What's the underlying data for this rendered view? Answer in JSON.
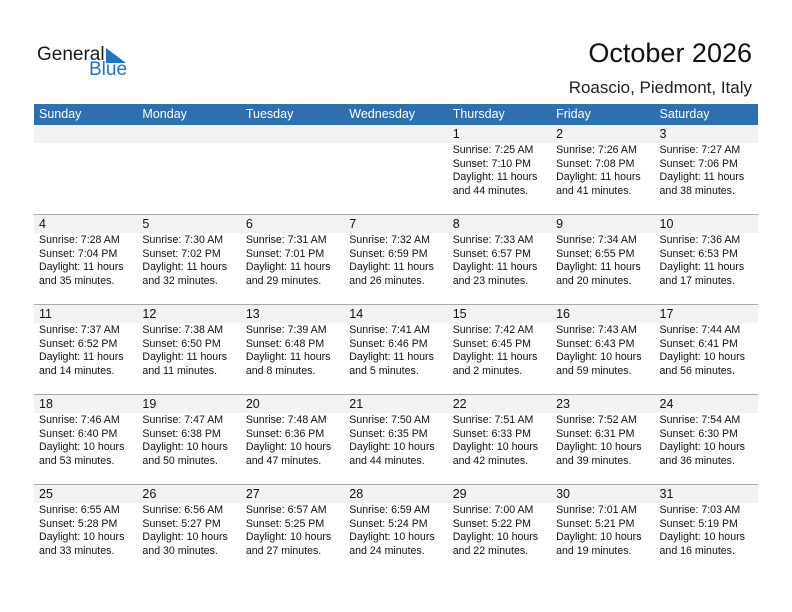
{
  "logo": {
    "line1": "General",
    "line2": "Blue"
  },
  "title": "October 2026",
  "location": "Roascio, Piedmont, Italy",
  "colors": {
    "header": "#2e6fb0",
    "date_band": "#f2f2f2",
    "logo_blue": "#1f75c2"
  },
  "days": [
    "Sunday",
    "Monday",
    "Tuesday",
    "Wednesday",
    "Thursday",
    "Friday",
    "Saturday"
  ],
  "weeks": [
    [
      null,
      null,
      null,
      null,
      {
        "d": "1",
        "sr": "Sunrise: 7:25 AM",
        "ss": "Sunset: 7:10 PM",
        "dl": "Daylight: 11 hours",
        "dm": "and 44 minutes."
      },
      {
        "d": "2",
        "sr": "Sunrise: 7:26 AM",
        "ss": "Sunset: 7:08 PM",
        "dl": "Daylight: 11 hours",
        "dm": "and 41 minutes."
      },
      {
        "d": "3",
        "sr": "Sunrise: 7:27 AM",
        "ss": "Sunset: 7:06 PM",
        "dl": "Daylight: 11 hours",
        "dm": "and 38 minutes."
      }
    ],
    [
      {
        "d": "4",
        "sr": "Sunrise: 7:28 AM",
        "ss": "Sunset: 7:04 PM",
        "dl": "Daylight: 11 hours",
        "dm": "and 35 minutes."
      },
      {
        "d": "5",
        "sr": "Sunrise: 7:30 AM",
        "ss": "Sunset: 7:02 PM",
        "dl": "Daylight: 11 hours",
        "dm": "and 32 minutes."
      },
      {
        "d": "6",
        "sr": "Sunrise: 7:31 AM",
        "ss": "Sunset: 7:01 PM",
        "dl": "Daylight: 11 hours",
        "dm": "and 29 minutes."
      },
      {
        "d": "7",
        "sr": "Sunrise: 7:32 AM",
        "ss": "Sunset: 6:59 PM",
        "dl": "Daylight: 11 hours",
        "dm": "and 26 minutes."
      },
      {
        "d": "8",
        "sr": "Sunrise: 7:33 AM",
        "ss": "Sunset: 6:57 PM",
        "dl": "Daylight: 11 hours",
        "dm": "and 23 minutes."
      },
      {
        "d": "9",
        "sr": "Sunrise: 7:34 AM",
        "ss": "Sunset: 6:55 PM",
        "dl": "Daylight: 11 hours",
        "dm": "and 20 minutes."
      },
      {
        "d": "10",
        "sr": "Sunrise: 7:36 AM",
        "ss": "Sunset: 6:53 PM",
        "dl": "Daylight: 11 hours",
        "dm": "and 17 minutes."
      }
    ],
    [
      {
        "d": "11",
        "sr": "Sunrise: 7:37 AM",
        "ss": "Sunset: 6:52 PM",
        "dl": "Daylight: 11 hours",
        "dm": "and 14 minutes."
      },
      {
        "d": "12",
        "sr": "Sunrise: 7:38 AM",
        "ss": "Sunset: 6:50 PM",
        "dl": "Daylight: 11 hours",
        "dm": "and 11 minutes."
      },
      {
        "d": "13",
        "sr": "Sunrise: 7:39 AM",
        "ss": "Sunset: 6:48 PM",
        "dl": "Daylight: 11 hours",
        "dm": "and 8 minutes."
      },
      {
        "d": "14",
        "sr": "Sunrise: 7:41 AM",
        "ss": "Sunset: 6:46 PM",
        "dl": "Daylight: 11 hours",
        "dm": "and 5 minutes."
      },
      {
        "d": "15",
        "sr": "Sunrise: 7:42 AM",
        "ss": "Sunset: 6:45 PM",
        "dl": "Daylight: 11 hours",
        "dm": "and 2 minutes."
      },
      {
        "d": "16",
        "sr": "Sunrise: 7:43 AM",
        "ss": "Sunset: 6:43 PM",
        "dl": "Daylight: 10 hours",
        "dm": "and 59 minutes."
      },
      {
        "d": "17",
        "sr": "Sunrise: 7:44 AM",
        "ss": "Sunset: 6:41 PM",
        "dl": "Daylight: 10 hours",
        "dm": "and 56 minutes."
      }
    ],
    [
      {
        "d": "18",
        "sr": "Sunrise: 7:46 AM",
        "ss": "Sunset: 6:40 PM",
        "dl": "Daylight: 10 hours",
        "dm": "and 53 minutes."
      },
      {
        "d": "19",
        "sr": "Sunrise: 7:47 AM",
        "ss": "Sunset: 6:38 PM",
        "dl": "Daylight: 10 hours",
        "dm": "and 50 minutes."
      },
      {
        "d": "20",
        "sr": "Sunrise: 7:48 AM",
        "ss": "Sunset: 6:36 PM",
        "dl": "Daylight: 10 hours",
        "dm": "and 47 minutes."
      },
      {
        "d": "21",
        "sr": "Sunrise: 7:50 AM",
        "ss": "Sunset: 6:35 PM",
        "dl": "Daylight: 10 hours",
        "dm": "and 44 minutes."
      },
      {
        "d": "22",
        "sr": "Sunrise: 7:51 AM",
        "ss": "Sunset: 6:33 PM",
        "dl": "Daylight: 10 hours",
        "dm": "and 42 minutes."
      },
      {
        "d": "23",
        "sr": "Sunrise: 7:52 AM",
        "ss": "Sunset: 6:31 PM",
        "dl": "Daylight: 10 hours",
        "dm": "and 39 minutes."
      },
      {
        "d": "24",
        "sr": "Sunrise: 7:54 AM",
        "ss": "Sunset: 6:30 PM",
        "dl": "Daylight: 10 hours",
        "dm": "and 36 minutes."
      }
    ],
    [
      {
        "d": "25",
        "sr": "Sunrise: 6:55 AM",
        "ss": "Sunset: 5:28 PM",
        "dl": "Daylight: 10 hours",
        "dm": "and 33 minutes."
      },
      {
        "d": "26",
        "sr": "Sunrise: 6:56 AM",
        "ss": "Sunset: 5:27 PM",
        "dl": "Daylight: 10 hours",
        "dm": "and 30 minutes."
      },
      {
        "d": "27",
        "sr": "Sunrise: 6:57 AM",
        "ss": "Sunset: 5:25 PM",
        "dl": "Daylight: 10 hours",
        "dm": "and 27 minutes."
      },
      {
        "d": "28",
        "sr": "Sunrise: 6:59 AM",
        "ss": "Sunset: 5:24 PM",
        "dl": "Daylight: 10 hours",
        "dm": "and 24 minutes."
      },
      {
        "d": "29",
        "sr": "Sunrise: 7:00 AM",
        "ss": "Sunset: 5:22 PM",
        "dl": "Daylight: 10 hours",
        "dm": "and 22 minutes."
      },
      {
        "d": "30",
        "sr": "Sunrise: 7:01 AM",
        "ss": "Sunset: 5:21 PM",
        "dl": "Daylight: 10 hours",
        "dm": "and 19 minutes."
      },
      {
        "d": "31",
        "sr": "Sunrise: 7:03 AM",
        "ss": "Sunset: 5:19 PM",
        "dl": "Daylight: 10 hours",
        "dm": "and 16 minutes."
      }
    ]
  ]
}
